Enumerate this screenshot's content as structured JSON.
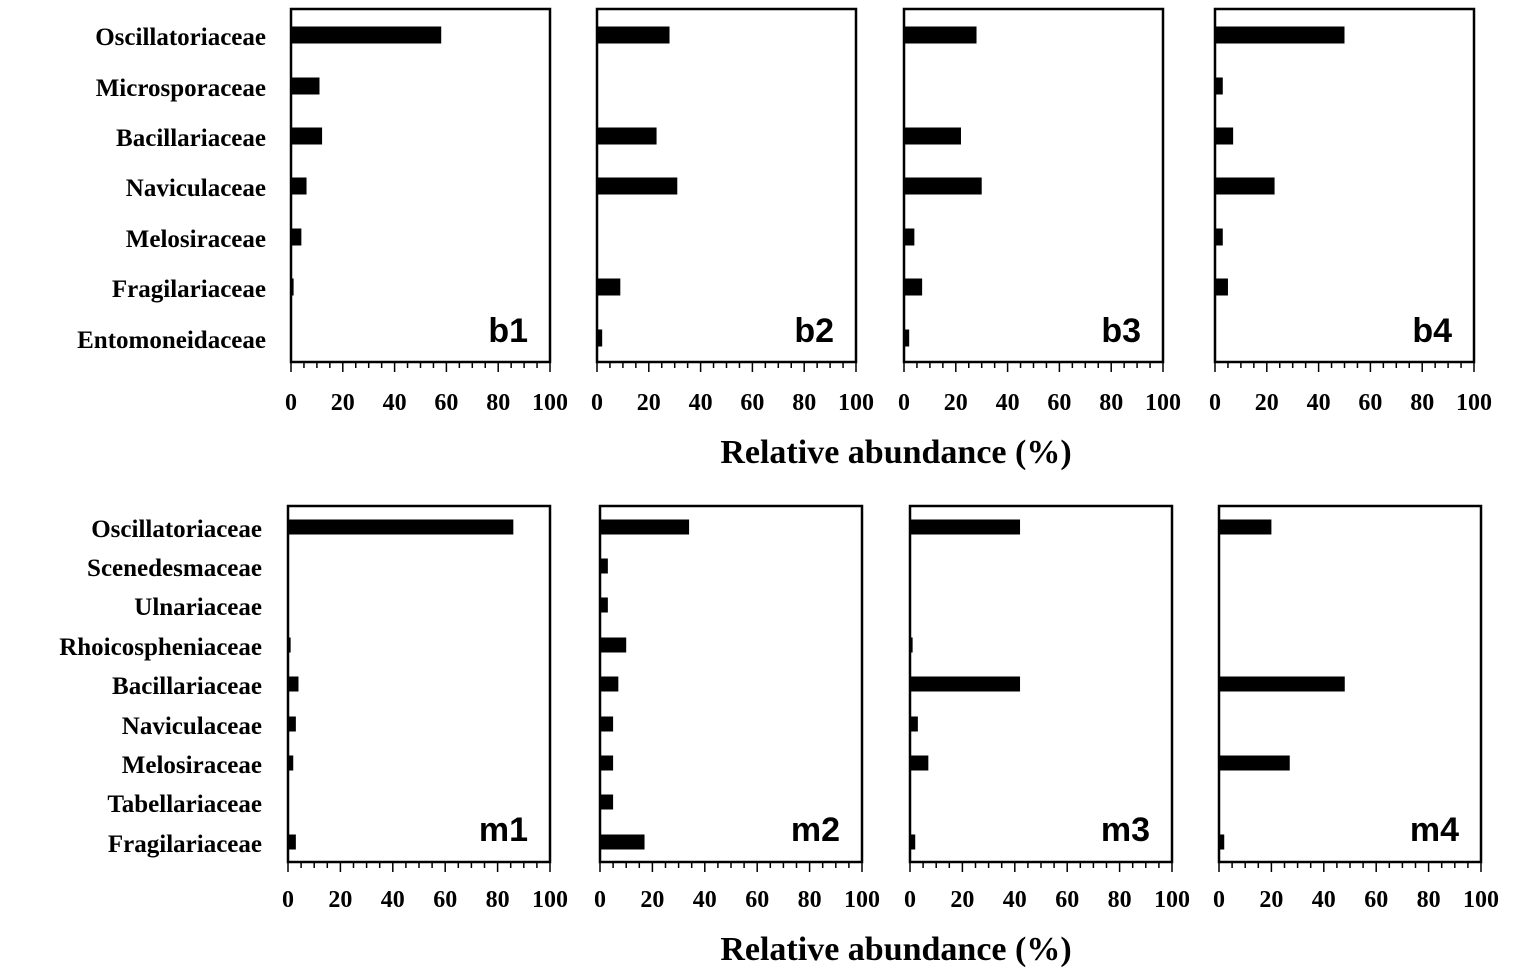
{
  "chart_data": [
    {
      "type": "bar",
      "orientation": "horizontal",
      "group": "b",
      "xlabel": "Relative abundance (%)",
      "xlim": [
        0,
        100
      ],
      "xticks": [
        "0",
        "20",
        "40",
        "60",
        "80",
        "100"
      ],
      "categories": [
        "Oscillatoriaceae",
        "Microsporaceae",
        "Bacillariaceae",
        "Naviculaceae",
        "Melosiraceae",
        "Fragilariaceae",
        "Entomoneidaceae"
      ],
      "panels": [
        {
          "label": "b1",
          "values": [
            58,
            11,
            12,
            6,
            4,
            1,
            0
          ]
        },
        {
          "label": "b2",
          "values": [
            28,
            0,
            23,
            31,
            0,
            9,
            2
          ]
        },
        {
          "label": "b3",
          "values": [
            28,
            0,
            22,
            30,
            4,
            7,
            2
          ]
        },
        {
          "label": "b4",
          "values": [
            50,
            3,
            7,
            23,
            3,
            5,
            0
          ]
        }
      ]
    },
    {
      "type": "bar",
      "orientation": "horizontal",
      "group": "m",
      "xlabel": "Relative abundance (%)",
      "xlim": [
        0,
        100
      ],
      "xticks": [
        "0",
        "20",
        "40",
        "60",
        "80",
        "100"
      ],
      "categories": [
        "Oscillatoriaceae",
        "Scenedesmaceae",
        "Ulnariaceae",
        "Rhoicospheniaceae",
        "Bacillariaceae",
        "Naviculaceae",
        "Melosiraceae",
        "Tabellariaceae",
        "Fragilariaceae"
      ],
      "panels": [
        {
          "label": "m1",
          "values": [
            86,
            0,
            0,
            1,
            4,
            3,
            2,
            0,
            3
          ]
        },
        {
          "label": "m2",
          "values": [
            34,
            3,
            3,
            10,
            7,
            5,
            5,
            5,
            17
          ]
        },
        {
          "label": "m3",
          "values": [
            42,
            0,
            0,
            1,
            42,
            3,
            7,
            0,
            2
          ]
        },
        {
          "label": "m4",
          "values": [
            20,
            0,
            0,
            0,
            48,
            0,
            27,
            0,
            2
          ]
        }
      ]
    }
  ]
}
